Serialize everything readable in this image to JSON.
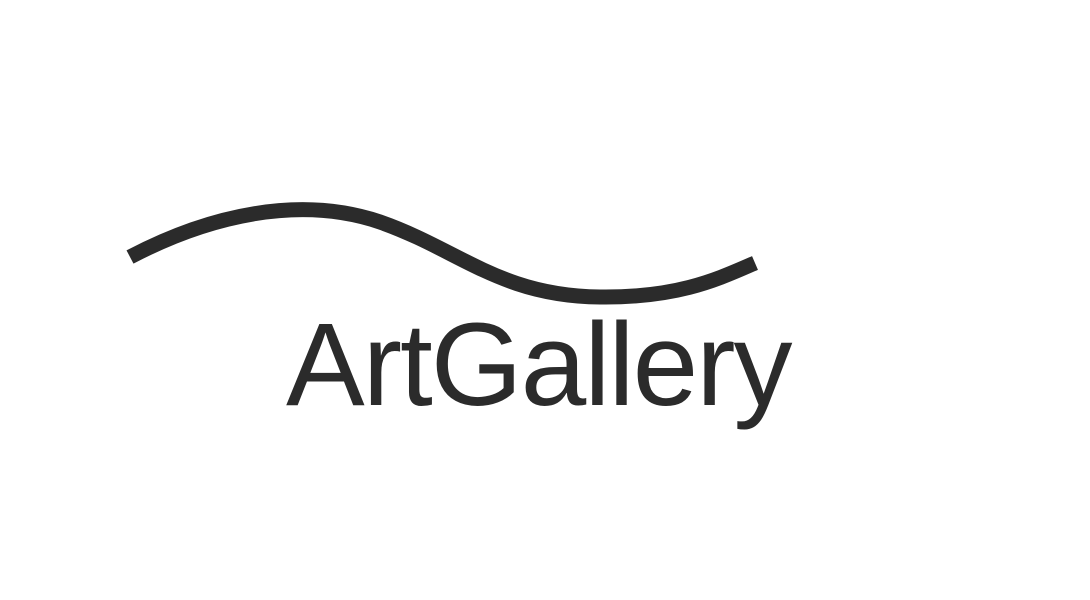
{
  "logo": {
    "wordmark": "ArtGallery",
    "icon": "wave-icon",
    "colors": {
      "ink": "#2b2b2b",
      "background": "#ffffff"
    }
  }
}
